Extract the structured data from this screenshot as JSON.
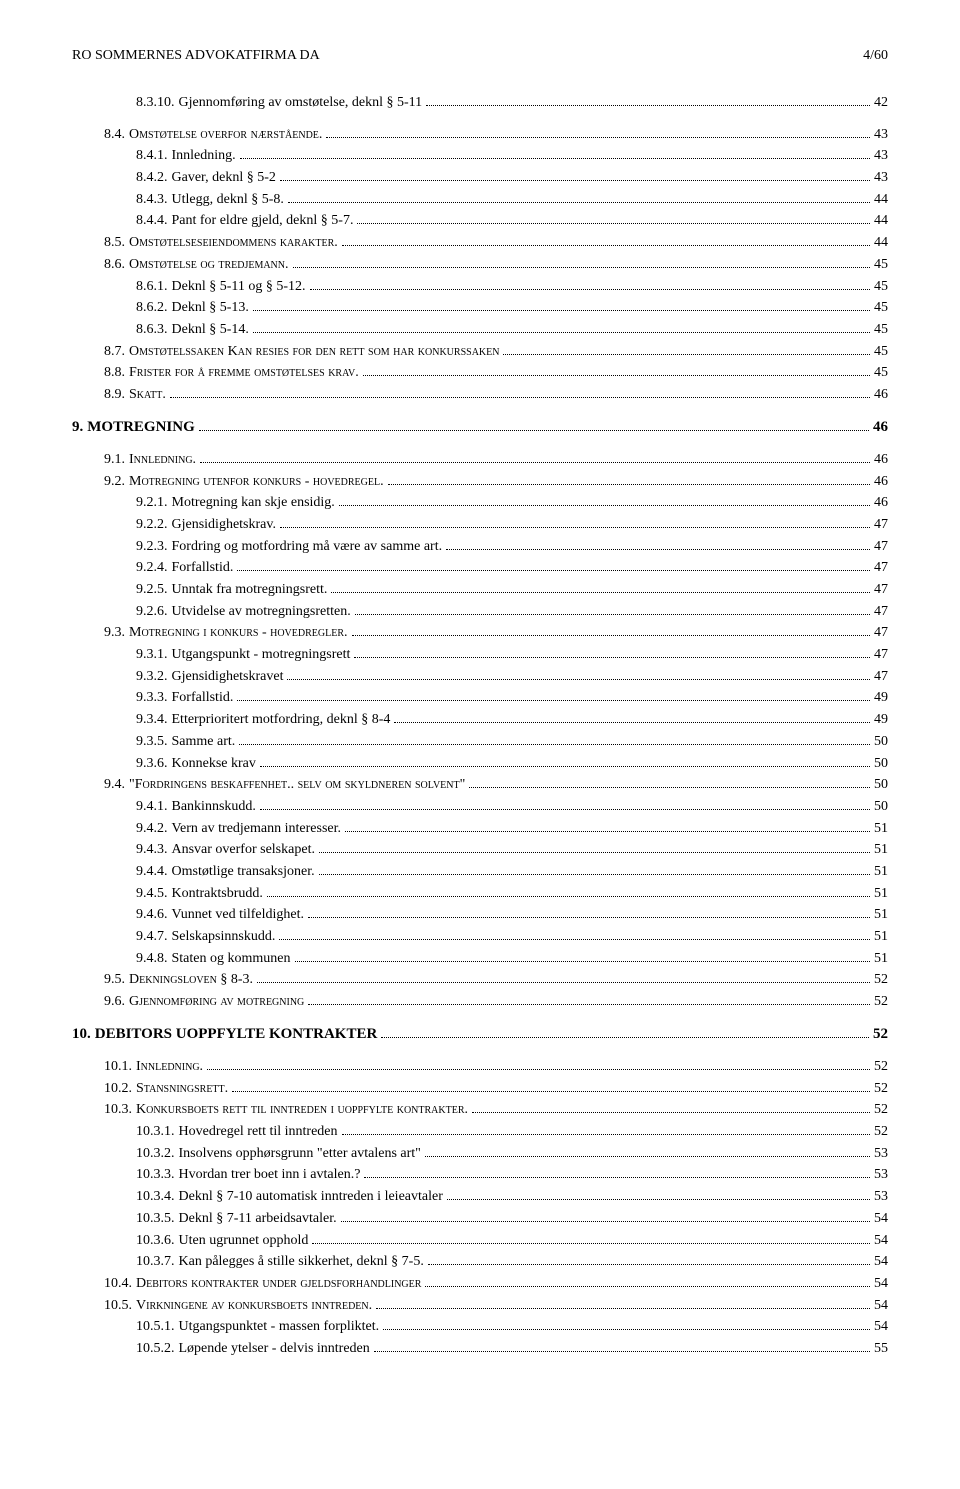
{
  "header": {
    "left": "RO SOMMERNES ADVOKATFIRMA DA",
    "right": "4/60"
  },
  "toc": [
    {
      "indent": 2,
      "num": "8.3.10.",
      "title": "Gjennomføring av omstøtelse, deknl § 5-11",
      "page": "42"
    },
    {
      "indent": 1,
      "num": "8.4.",
      "title": "Omstøtelse overfor nærstående.",
      "page": "43",
      "smallcaps": true,
      "gap": true
    },
    {
      "indent": 2,
      "num": "8.4.1.",
      "title": "Innledning.",
      "page": "43"
    },
    {
      "indent": 2,
      "num": "8.4.2.",
      "title": "Gaver, deknl § 5-2",
      "page": "43"
    },
    {
      "indent": 2,
      "num": "8.4.3.",
      "title": "Utlegg, deknl § 5-8.",
      "page": "44"
    },
    {
      "indent": 2,
      "num": "8.4.4.",
      "title": "Pant for eldre gjeld, deknl § 5-7.",
      "page": "44"
    },
    {
      "indent": 1,
      "num": "8.5.",
      "title": "Omstøtelseseiendommens karakter.",
      "page": "44",
      "smallcaps": true
    },
    {
      "indent": 1,
      "num": "8.6.",
      "title": "Omstøtelse og tredjemann.",
      "page": "45",
      "smallcaps": true
    },
    {
      "indent": 2,
      "num": "8.6.1.",
      "title": "Deknl § 5-11 og § 5-12.",
      "page": "45"
    },
    {
      "indent": 2,
      "num": "8.6.2.",
      "title": "Deknl § 5-13.",
      "page": "45"
    },
    {
      "indent": 2,
      "num": "8.6.3.",
      "title": "Deknl § 5-14.",
      "page": "45"
    },
    {
      "indent": 1,
      "num": "8.7.",
      "title": "Omstøtelssaken Kan resies for den rett som har konkurssaken",
      "page": "45",
      "smallcaps": true
    },
    {
      "indent": 1,
      "num": "8.8.",
      "title": "Frister for å fremme omstøtelses krav.",
      "page": "45",
      "smallcaps": true
    },
    {
      "indent": 1,
      "num": "8.9.",
      "title": "Skatt.",
      "page": "46",
      "smallcaps": true
    },
    {
      "indent": 0,
      "num": "9.",
      "title": "MOTREGNING",
      "page": "46",
      "bold": true,
      "gap": true,
      "heading": true
    },
    {
      "indent": 1,
      "num": "9.1.",
      "title": "Innledning.",
      "page": "46",
      "smallcaps": true,
      "gap": true
    },
    {
      "indent": 1,
      "num": "9.2.",
      "title": "Motregning utenfor konkurs - hovedregel.",
      "page": "46",
      "smallcaps": true
    },
    {
      "indent": 2,
      "num": "9.2.1.",
      "title": "Motregning kan skje ensidig.",
      "page": "46"
    },
    {
      "indent": 2,
      "num": "9.2.2.",
      "title": "Gjensidighetskrav.",
      "page": "47"
    },
    {
      "indent": 2,
      "num": "9.2.3.",
      "title": "Fordring og motfordring må være av samme art.",
      "page": "47"
    },
    {
      "indent": 2,
      "num": "9.2.4.",
      "title": "Forfallstid.",
      "page": "47"
    },
    {
      "indent": 2,
      "num": "9.2.5.",
      "title": "Unntak fra motregningsrett.",
      "page": "47"
    },
    {
      "indent": 2,
      "num": "9.2.6.",
      "title": "Utvidelse av motregningsretten.",
      "page": "47"
    },
    {
      "indent": 1,
      "num": "9.3.",
      "title": "Motregning i konkurs - hovedregler.",
      "page": "47",
      "smallcaps": true
    },
    {
      "indent": 2,
      "num": "9.3.1.",
      "title": "Utgangspunkt - motregningsrett",
      "page": "47"
    },
    {
      "indent": 2,
      "num": "9.3.2.",
      "title": "Gjensidighetskravet",
      "page": "47"
    },
    {
      "indent": 2,
      "num": "9.3.3.",
      "title": "Forfallstid.",
      "page": "49"
    },
    {
      "indent": 2,
      "num": "9.3.4.",
      "title": "Etterprioritert motfordring, deknl § 8-4",
      "page": "49"
    },
    {
      "indent": 2,
      "num": "9.3.5.",
      "title": "Samme art.",
      "page": "50"
    },
    {
      "indent": 2,
      "num": "9.3.6.",
      "title": "Konnekse krav",
      "page": "50"
    },
    {
      "indent": 1,
      "num": "9.4.",
      "title": "\"Fordringens beskaffenhet.. selv om skyldneren solvent\"",
      "page": "50",
      "smallcaps": true
    },
    {
      "indent": 2,
      "num": "9.4.1.",
      "title": "Bankinnskudd.",
      "page": "50"
    },
    {
      "indent": 2,
      "num": "9.4.2.",
      "title": "Vern av tredjemann interesser.",
      "page": "51"
    },
    {
      "indent": 2,
      "num": "9.4.3.",
      "title": "Ansvar overfor selskapet.",
      "page": "51"
    },
    {
      "indent": 2,
      "num": "9.4.4.",
      "title": "Omstøtlige transaksjoner.",
      "page": "51"
    },
    {
      "indent": 2,
      "num": "9.4.5.",
      "title": "Kontraktsbrudd.",
      "page": "51"
    },
    {
      "indent": 2,
      "num": "9.4.6.",
      "title": "Vunnet ved tilfeldighet.",
      "page": "51"
    },
    {
      "indent": 2,
      "num": "9.4.7.",
      "title": "Selskapsinnskudd.",
      "page": "51"
    },
    {
      "indent": 2,
      "num": "9.4.8.",
      "title": "Staten og kommunen",
      "page": "51"
    },
    {
      "indent": 1,
      "num": "9.5.",
      "title": "Dekningsloven § 8-3.",
      "page": "52",
      "smallcaps": true
    },
    {
      "indent": 1,
      "num": "9.6.",
      "title": "Gjennomføring av motregning",
      "page": "52",
      "smallcaps": true
    },
    {
      "indent": 0,
      "num": "10.",
      "title": "DEBITORS UOPPFYLTE KONTRAKTER",
      "page": "52",
      "bold": true,
      "gap": true,
      "heading": true
    },
    {
      "indent": 1,
      "num": "10.1.",
      "title": "Innledning.",
      "page": "52",
      "smallcaps": true,
      "gap": true
    },
    {
      "indent": 1,
      "num": "10.2.",
      "title": "Stansningsrett.",
      "page": "52",
      "smallcaps": true
    },
    {
      "indent": 1,
      "num": "10.3.",
      "title": "Konkursboets rett til inntreden i uoppfylte kontrakter.",
      "page": "52",
      "smallcaps": true
    },
    {
      "indent": 2,
      "num": "10.3.1.",
      "title": "Hovedregel rett til inntreden",
      "page": "52"
    },
    {
      "indent": 2,
      "num": "10.3.2.",
      "title": "Insolvens opphørsgrunn \"etter avtalens art\"",
      "page": "53"
    },
    {
      "indent": 2,
      "num": "10.3.3.",
      "title": "Hvordan trer boet inn i avtalen.?",
      "page": "53"
    },
    {
      "indent": 2,
      "num": "10.3.4.",
      "title": "Deknl § 7-10 automatisk inntreden i leieavtaler",
      "page": "53"
    },
    {
      "indent": 2,
      "num": "10.3.5.",
      "title": "Deknl § 7-11 arbeidsavtaler.",
      "page": "54"
    },
    {
      "indent": 2,
      "num": "10.3.6.",
      "title": "Uten ugrunnet opphold",
      "page": "54"
    },
    {
      "indent": 2,
      "num": "10.3.7.",
      "title": "Kan pålegges å stille sikkerhet, deknl § 7-5.",
      "page": "54"
    },
    {
      "indent": 1,
      "num": "10.4.",
      "title": "Debitors kontrakter under gjeldsforhandlinger",
      "page": "54",
      "smallcaps": true
    },
    {
      "indent": 1,
      "num": "10.5.",
      "title": "Virkningene av konkursboets inntreden.",
      "page": "54",
      "smallcaps": true
    },
    {
      "indent": 2,
      "num": "10.5.1.",
      "title": "Utgangspunktet - massen forpliktet.",
      "page": "54"
    },
    {
      "indent": 2,
      "num": "10.5.2.",
      "title": "Løpende ytelser - delvis inntreden",
      "page": "55"
    }
  ]
}
